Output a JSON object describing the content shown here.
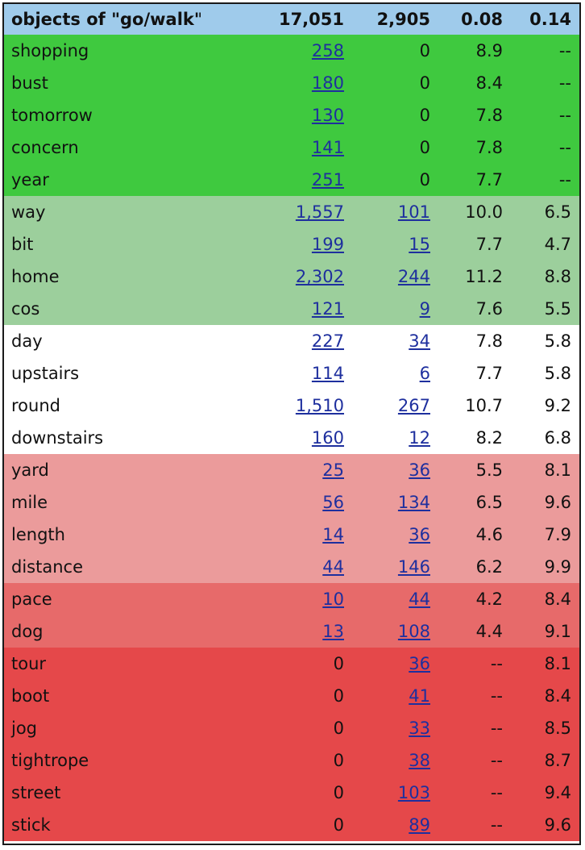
{
  "header": {
    "label": "objects of \"go/walk\"",
    "col1": "17,051",
    "col2": "2,905",
    "col3": "0.08",
    "col4": "0.14"
  },
  "colors": {
    "header": "#9fcbeb",
    "group1": "#3fc93f",
    "group2": "#9ccf9c",
    "group3": "#ffffff",
    "group4": "#eb9b9b",
    "group5": "#e76a6a",
    "group6": "#e5484a",
    "link": "#1e2f9e"
  },
  "rows": [
    {
      "word": "shopping",
      "c1": "258",
      "c2": "0",
      "c3": "8.9",
      "c4": "--",
      "group": 1
    },
    {
      "word": "bust",
      "c1": "180",
      "c2": "0",
      "c3": "8.4",
      "c4": "--",
      "group": 1
    },
    {
      "word": "tomorrow",
      "c1": "130",
      "c2": "0",
      "c3": "7.8",
      "c4": "--",
      "group": 1
    },
    {
      "word": "concern",
      "c1": "141",
      "c2": "0",
      "c3": "7.8",
      "c4": "--",
      "group": 1
    },
    {
      "word": "year",
      "c1": "251",
      "c2": "0",
      "c3": "7.7",
      "c4": "--",
      "group": 1
    },
    {
      "word": "way",
      "c1": "1,557",
      "c2": "101",
      "c3": "10.0",
      "c4": "6.5",
      "group": 2
    },
    {
      "word": "bit",
      "c1": "199",
      "c2": "15",
      "c3": "7.7",
      "c4": "4.7",
      "group": 2
    },
    {
      "word": "home",
      "c1": "2,302",
      "c2": "244",
      "c3": "11.2",
      "c4": "8.8",
      "group": 2
    },
    {
      "word": "cos",
      "c1": "121",
      "c2": "9",
      "c3": "7.6",
      "c4": "5.5",
      "group": 2
    },
    {
      "word": "day",
      "c1": "227",
      "c2": "34",
      "c3": "7.8",
      "c4": "5.8",
      "group": 3
    },
    {
      "word": "upstairs",
      "c1": "114",
      "c2": "6",
      "c3": "7.7",
      "c4": "5.8",
      "group": 3
    },
    {
      "word": "round",
      "c1": "1,510",
      "c2": "267",
      "c3": "10.7",
      "c4": "9.2",
      "group": 3
    },
    {
      "word": "downstairs",
      "c1": "160",
      "c2": "12",
      "c3": "8.2",
      "c4": "6.8",
      "group": 3
    },
    {
      "word": "yard",
      "c1": "25",
      "c2": "36",
      "c3": "5.5",
      "c4": "8.1",
      "group": 4
    },
    {
      "word": "mile",
      "c1": "56",
      "c2": "134",
      "c3": "6.5",
      "c4": "9.6",
      "group": 4
    },
    {
      "word": "length",
      "c1": "14",
      "c2": "36",
      "c3": "4.6",
      "c4": "7.9",
      "group": 4
    },
    {
      "word": "distance",
      "c1": "44",
      "c2": "146",
      "c3": "6.2",
      "c4": "9.9",
      "group": 4
    },
    {
      "word": "pace",
      "c1": "10",
      "c2": "44",
      "c3": "4.2",
      "c4": "8.4",
      "group": 5
    },
    {
      "word": "dog",
      "c1": "13",
      "c2": "108",
      "c3": "4.4",
      "c4": "9.1",
      "group": 5
    },
    {
      "word": "tour",
      "c1": "0",
      "c2": "36",
      "c3": "--",
      "c4": "8.1",
      "group": 6
    },
    {
      "word": "boot",
      "c1": "0",
      "c2": "41",
      "c3": "--",
      "c4": "8.4",
      "group": 6
    },
    {
      "word": "jog",
      "c1": "0",
      "c2": "33",
      "c3": "--",
      "c4": "8.5",
      "group": 6
    },
    {
      "word": "tightrope",
      "c1": "0",
      "c2": "38",
      "c3": "--",
      "c4": "8.7",
      "group": 6
    },
    {
      "word": "street",
      "c1": "0",
      "c2": "103",
      "c3": "--",
      "c4": "9.4",
      "group": 6
    },
    {
      "word": "stick",
      "c1": "0",
      "c2": "89",
      "c3": "--",
      "c4": "9.6",
      "group": 6
    }
  ]
}
